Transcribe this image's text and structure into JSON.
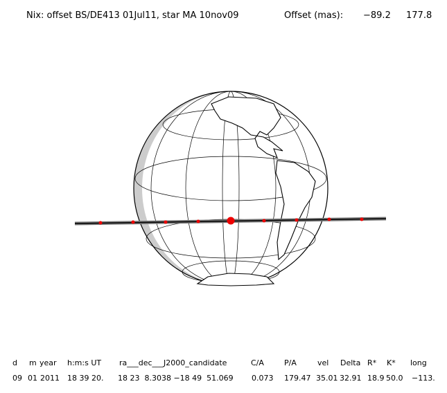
{
  "header": {
    "title": "Nix: offset BS/DE413 01Jul11, star MA 10nov09",
    "offset_label": "Offset (mas):",
    "offset_values": [
      "−89.2",
      "177.8"
    ]
  },
  "table": {
    "columns": [
      "d",
      "m",
      "year",
      "h:m:s UT",
      "ra___dec___J2000_candidate",
      "C/A",
      "P/A",
      "vel",
      "Delta",
      "R*",
      "K*",
      "long"
    ],
    "rows": [
      [
        "09",
        "01",
        "2011",
        "18 39 20.",
        "18 23  8.3038 −18 49  51.069",
        "0.073",
        "179.47",
        "35.01",
        "32.91",
        "18.9",
        "50.0",
        "−113."
      ]
    ]
  }
}
